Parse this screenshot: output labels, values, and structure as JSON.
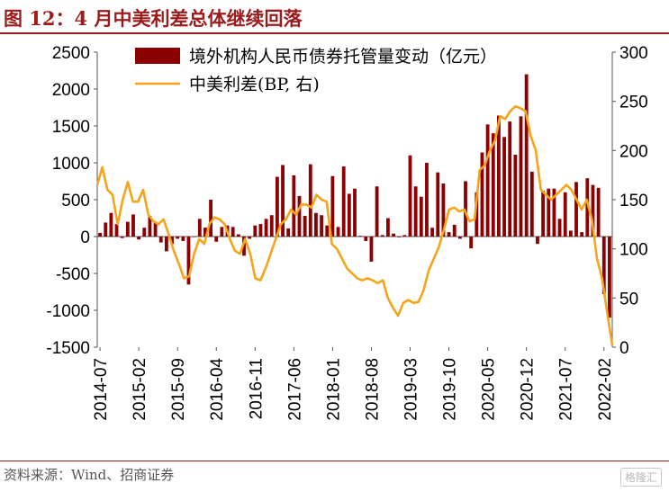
{
  "title": "图 12：4 月中美利差总体继续回落",
  "source": "资料来源：Wind、招商证券",
  "watermark": "格隆汇",
  "colors": {
    "bar": "#8b0000",
    "line": "#f5a41c",
    "accent": "#9b1b1b",
    "text": "#000000"
  },
  "chart_data": {
    "type": "bar+line",
    "title": "",
    "legend_placement": "top-center",
    "left_axis": {
      "ylim": [
        -1500,
        2500
      ],
      "ticks": [
        -1500,
        -1000,
        -500,
        0,
        500,
        1000,
        1500,
        2000,
        2500
      ]
    },
    "right_axis": {
      "ylim": [
        0,
        300
      ],
      "ticks": [
        0,
        50,
        100,
        150,
        200,
        250,
        300
      ]
    },
    "x_tick_labels": [
      "2014-07",
      "2015-02",
      "2015-09",
      "2016-04",
      "2016-11",
      "2017-06",
      "2018-01",
      "2018-08",
      "2019-03",
      "2019-10",
      "2020-05",
      "2020-12",
      "2021-07",
      "2022-02"
    ],
    "x_start": "2014-07",
    "series": [
      {
        "name": "境外机构人民币债券托管量变动（亿元）",
        "axis": "left",
        "type": "bar",
        "values": [
          50,
          190,
          320,
          170,
          -20,
          200,
          300,
          -40,
          120,
          280,
          200,
          -80,
          -200,
          -100,
          -30,
          -60,
          -650,
          0,
          240,
          120,
          500,
          -70,
          130,
          150,
          130,
          30,
          -260,
          -30,
          150,
          170,
          240,
          290,
          810,
          970,
          110,
          830,
          550,
          280,
          980,
          320,
          290,
          150,
          820,
          130,
          950,
          580,
          650,
          10,
          -60,
          -340,
          680,
          20,
          250,
          40,
          -10,
          20,
          1100,
          680,
          540,
          1000,
          120,
          870,
          720,
          60,
          160,
          -30,
          750,
          -160,
          600,
          1140,
          1520,
          1400,
          1640,
          1350,
          1560,
          1110,
          1630,
          2200,
          880,
          -100,
          620,
          650,
          650,
          240,
          600,
          80,
          740,
          60,
          790,
          700,
          660,
          -780,
          -1100
        ]
      },
      {
        "name": "中美利差(BP, 右)",
        "axis": "right",
        "type": "line",
        "values": [
          165,
          183,
          160,
          155,
          125,
          150,
          168,
          148,
          148,
          160,
          135,
          128,
          125,
          130,
          115,
          98,
          85,
          70,
          72,
          95,
          110,
          105,
          125,
          132,
          130,
          125,
          110,
          98,
          95,
          110,
          95,
          70,
          68,
          80,
          95,
          110,
          125,
          130,
          140,
          135,
          145,
          145,
          142,
          155,
          150,
          148,
          105,
          100,
          90,
          80,
          75,
          70,
          68,
          70,
          68,
          65,
          68,
          50,
          40,
          32,
          45,
          48,
          45,
          46,
          58,
          78,
          90,
          102,
          120,
          140,
          142,
          138,
          140,
          128,
          130,
          180,
          185,
          200,
          210,
          235,
          232,
          240,
          245,
          243,
          240,
          215,
          200,
          160,
          155,
          150,
          155,
          160,
          165,
          160,
          150,
          140,
          150,
          130,
          90,
          70,
          35,
          2
        ]
      }
    ]
  }
}
